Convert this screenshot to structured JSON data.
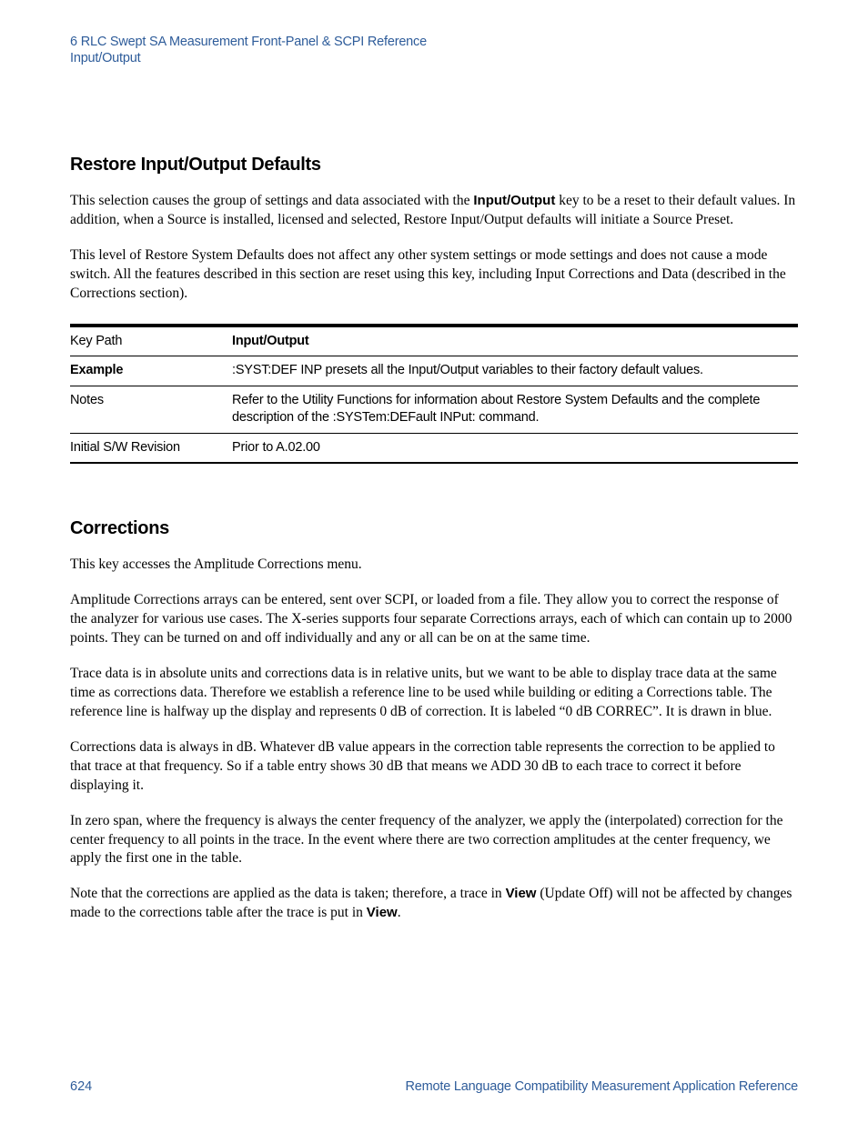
{
  "header": {
    "line1": "6  RLC Swept SA Measurement Front-Panel & SCPI Reference",
    "line2": "Input/Output"
  },
  "section1": {
    "title": "Restore Input/Output Defaults",
    "para1_pre": "This selection causes the group of settings and data associated with the ",
    "para1_bold": "Input/Output",
    "para1_post": " key to be a reset to their default values.  In addition, when a Source is installed, licensed and selected, Restore Input/Output defaults will initiate a Source Preset.",
    "para2": "This level of Restore System Defaults does not affect any other system settings or mode settings and does not cause a mode switch. All the features described in this section are reset using this key, including Input Corrections and Data (described in the Corrections section)."
  },
  "table1": {
    "rows": [
      {
        "label": "Key Path",
        "label_bold": false,
        "value": "Input/Output",
        "value_bold": true
      },
      {
        "label": "Example",
        "label_bold": true,
        "value": ":SYST:DEF INP presets all the Input/Output variables to their factory default values.",
        "value_bold": false
      },
      {
        "label": "Notes",
        "label_bold": false,
        "value": "Refer to the Utility Functions for information about Restore System Defaults and the complete description of the :SYSTem:DEFault INPut: command.",
        "value_bold": false
      },
      {
        "label": "Initial S/W Revision",
        "label_bold": false,
        "value": "Prior to A.02.00",
        "value_bold": false
      }
    ]
  },
  "section2": {
    "title": "Corrections",
    "para1": "This key accesses the Amplitude Corrections menu.",
    "para2": "Amplitude Corrections arrays can be entered, sent over SCPI, or loaded from a file.  They allow you to correct the response of the analyzer for various use cases.  The X-series supports four separate Corrections arrays, each of which can contain up to 2000 points.  They can be turned on and off individually and any or all can be on at the same time.",
    "para3": "Trace data is in absolute units and corrections data is in relative units, but we want to be able to display trace data at the same time as corrections data.  Therefore we establish a reference line to be used while building or editing a Corrections table.  The reference line is halfway up the display and represents 0 dB of correction.  It is labeled “0 dB CORREC”.  It is drawn in blue.",
    "para4": "Corrections data is always in dB.  Whatever dB value appears in the correction table represents the correction to be applied to that trace at that frequency.  So if a table entry shows 30 dB that means we ADD 30 dB to each trace to correct it before displaying it.",
    "para5": "In zero span, where the frequency is always the center frequency of the analyzer, we apply the (interpolated) correction for the center frequency to all points in the trace.  In the event where there are two correction amplitudes at the center frequency, we apply the first one in the table.",
    "para6_pre": "Note that the corrections are applied as the data is taken; therefore, a trace in ",
    "para6_bold1": "View",
    "para6_mid": " (Update Off) will not be affected by changes made to the corrections table after the trace is put in ",
    "para6_bold2": "View",
    "para6_post": "."
  },
  "footer": {
    "page_number": "624",
    "title": "Remote Language Compatibility Measurement Application Reference"
  }
}
